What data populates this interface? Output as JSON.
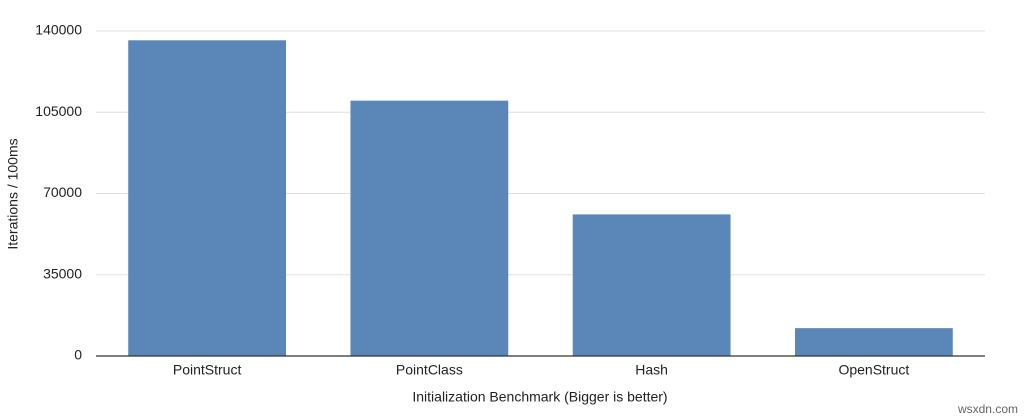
{
  "chart_data": {
    "type": "bar",
    "y_label": "Iterations / 100ms",
    "x_label": "Initialization Benchmark (Bigger is better)",
    "categories": [
      "PointStruct",
      "PointClass",
      "Hash",
      "OpenStruct"
    ],
    "values": [
      136000,
      110000,
      61000,
      12000
    ],
    "color": "#5b87b8",
    "ylim": [
      0,
      140000
    ],
    "yticks": [
      0,
      35000,
      70000,
      105000,
      140000
    ],
    "grid": true,
    "watermark": "wsxdn.com"
  }
}
